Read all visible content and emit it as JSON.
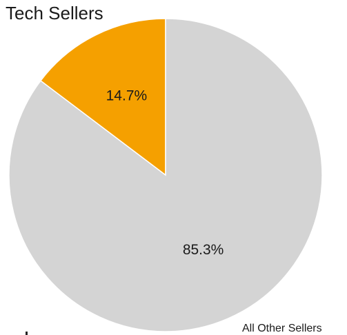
{
  "chart_data": {
    "type": "pie",
    "title": "Tech Sellers",
    "slices": [
      {
        "label": "",
        "value": 14.7,
        "display": "14.7%",
        "color": "#f5a000"
      },
      {
        "label": "All Other Sellers",
        "value": 85.3,
        "display": "85.3%",
        "color": "#d4d4d4"
      }
    ],
    "start_angle": "12 o'clock",
    "direction": "counter-clockwise"
  }
}
